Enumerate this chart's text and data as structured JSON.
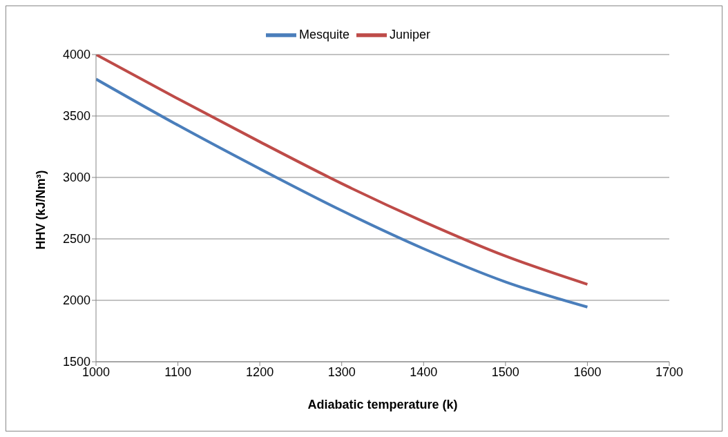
{
  "chart_data": {
    "type": "line",
    "xlabel": "Adiabatic temperature (k)",
    "ylabel": "HHV (kJ/Nm³)",
    "x": [
      1000,
      1100,
      1200,
      1300,
      1400,
      1500,
      1600
    ],
    "series": [
      {
        "name": "Mesquite",
        "color": "#4a7ebb",
        "values": [
          3800,
          3425,
          3070,
          2730,
          2420,
          2150,
          1945
        ]
      },
      {
        "name": "Juniper",
        "color": "#be4b48",
        "values": [
          4000,
          3640,
          3290,
          2950,
          2640,
          2360,
          2130
        ]
      }
    ],
    "xlim": [
      1000,
      1700
    ],
    "xticks": [
      1000,
      1100,
      1200,
      1300,
      1400,
      1500,
      1600,
      1700
    ],
    "ylim": [
      1500,
      4000
    ],
    "yticks": [
      1500,
      2000,
      2500,
      3000,
      3500,
      4000
    ],
    "grid": "y",
    "legend": "top",
    "marker": "none",
    "line_style": "solid"
  }
}
